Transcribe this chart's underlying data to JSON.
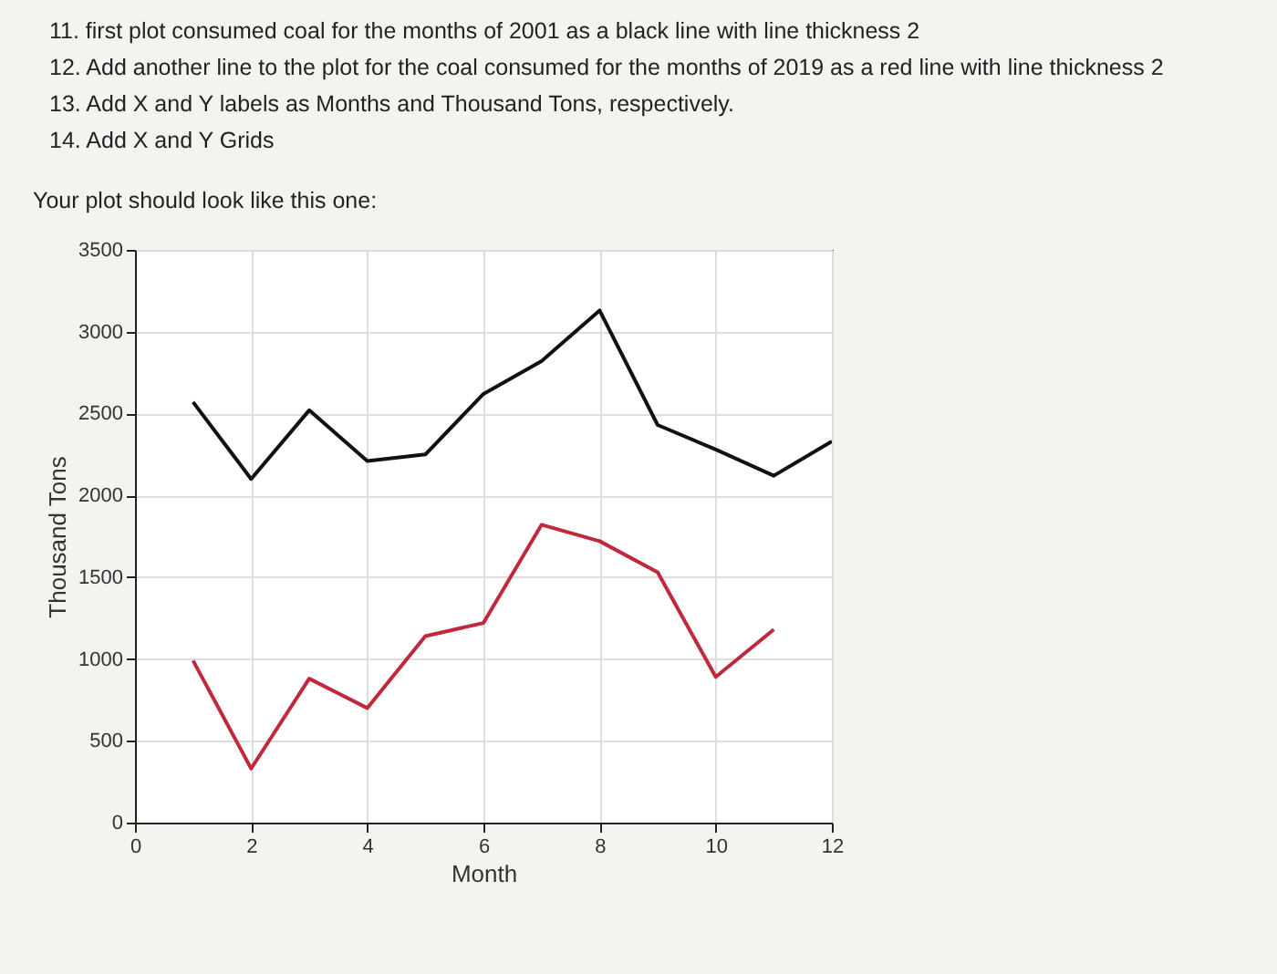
{
  "chart_data": {
    "type": "line",
    "xlabel": "Month",
    "ylabel": "Thousand Tons",
    "annotations": [
      "11. first plot consumed coal for the months of 2001 as a black line with line thickness 2",
      "12. Add another line to the plot for the coal consumed for the months of 2019 as a red line with line thickness 2",
      "13. Add X and Y labels as Months and Thousand Tons, respectively.",
      "14. Add X and Y Grids",
      "Your plot should look like this one:"
    ],
    "x": [
      1,
      2,
      3,
      4,
      5,
      6,
      7,
      8,
      9,
      10,
      11,
      12
    ],
    "series": [
      {
        "color": "#111111",
        "values": [
          2570,
          2100,
          2520,
          2210,
          2250,
          2620,
          2820,
          3130,
          2430,
          2280,
          2120,
          2330
        ]
      },
      {
        "color": "#c0283c",
        "values": [
          990,
          330,
          880,
          700,
          1140,
          1220,
          1820,
          1720,
          1530,
          890,
          1180,
          null
        ]
      }
    ],
    "xlim": [
      0,
      12
    ],
    "xticks": [
      0,
      2,
      4,
      6,
      8,
      10,
      12
    ],
    "ylim": [
      0,
      3500
    ],
    "yticks": [
      0,
      500,
      1000,
      1500,
      2000,
      2500,
      3000,
      3500
    ],
    "grid": true
  }
}
